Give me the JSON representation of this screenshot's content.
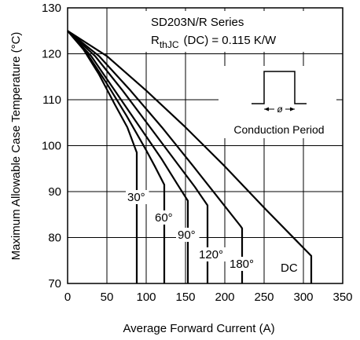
{
  "chart_data": {
    "type": "line",
    "xlabel": "Average Forward Current (A)",
    "ylabel": "Maximum Allowable Case Temperature (°C)",
    "xlim": [
      0,
      350
    ],
    "ylim": [
      70,
      130
    ],
    "xticks": [
      0,
      50,
      100,
      150,
      200,
      250,
      300,
      350
    ],
    "yticks": [
      70,
      80,
      90,
      100,
      110,
      120,
      130
    ],
    "grid": true,
    "annotations": {
      "series_title": "SD203N/R Series",
      "rth_symbol": "R",
      "rth_subscript": "thJC",
      "rth_value": "(DC) = 0.115 K/W",
      "waveform_symbol": "ø",
      "waveform_caption": "Conduction Period"
    },
    "series": [
      {
        "name": "30°",
        "points": [
          [
            0,
            125
          ],
          [
            20,
            121
          ],
          [
            40,
            115.5
          ],
          [
            60,
            109
          ],
          [
            76,
            104
          ],
          [
            88,
            98.5
          ]
        ],
        "drop_x": 88,
        "drop_to": 70
      },
      {
        "name": "60°",
        "points": [
          [
            0,
            125
          ],
          [
            25,
            120
          ],
          [
            50,
            113.5
          ],
          [
            75,
            106.5
          ],
          [
            100,
            99
          ],
          [
            111,
            95.5
          ],
          [
            123,
            91.5
          ]
        ],
        "drop_x": 123,
        "drop_to": 70
      },
      {
        "name": "90°",
        "points": [
          [
            0,
            125
          ],
          [
            30,
            119.5
          ],
          [
            60,
            112
          ],
          [
            90,
            104.5
          ],
          [
            120,
            97
          ],
          [
            140,
            91.5
          ],
          [
            153,
            88
          ]
        ],
        "drop_x": 153,
        "drop_to": 70
      },
      {
        "name": "120°",
        "points": [
          [
            0,
            125
          ],
          [
            35,
            119.5
          ],
          [
            70,
            112
          ],
          [
            105,
            104
          ],
          [
            140,
            96
          ],
          [
            162,
            91
          ],
          [
            178,
            87
          ]
        ],
        "drop_x": 178,
        "drop_to": 70
      },
      {
        "name": "180°",
        "points": [
          [
            0,
            125
          ],
          [
            40,
            119.5
          ],
          [
            80,
            112
          ],
          [
            120,
            104
          ],
          [
            160,
            95.5
          ],
          [
            190,
            89
          ],
          [
            220,
            82.5
          ],
          [
            222,
            82
          ]
        ],
        "drop_x": 222,
        "drop_to": 70
      },
      {
        "name": "DC",
        "points": [
          [
            0,
            125
          ],
          [
            50,
            119.5
          ],
          [
            100,
            112
          ],
          [
            150,
            104
          ],
          [
            200,
            95.5
          ],
          [
            250,
            86.5
          ],
          [
            290,
            79.5
          ],
          [
            310,
            76
          ]
        ],
        "drop_x": 310,
        "drop_to": 70
      }
    ]
  }
}
